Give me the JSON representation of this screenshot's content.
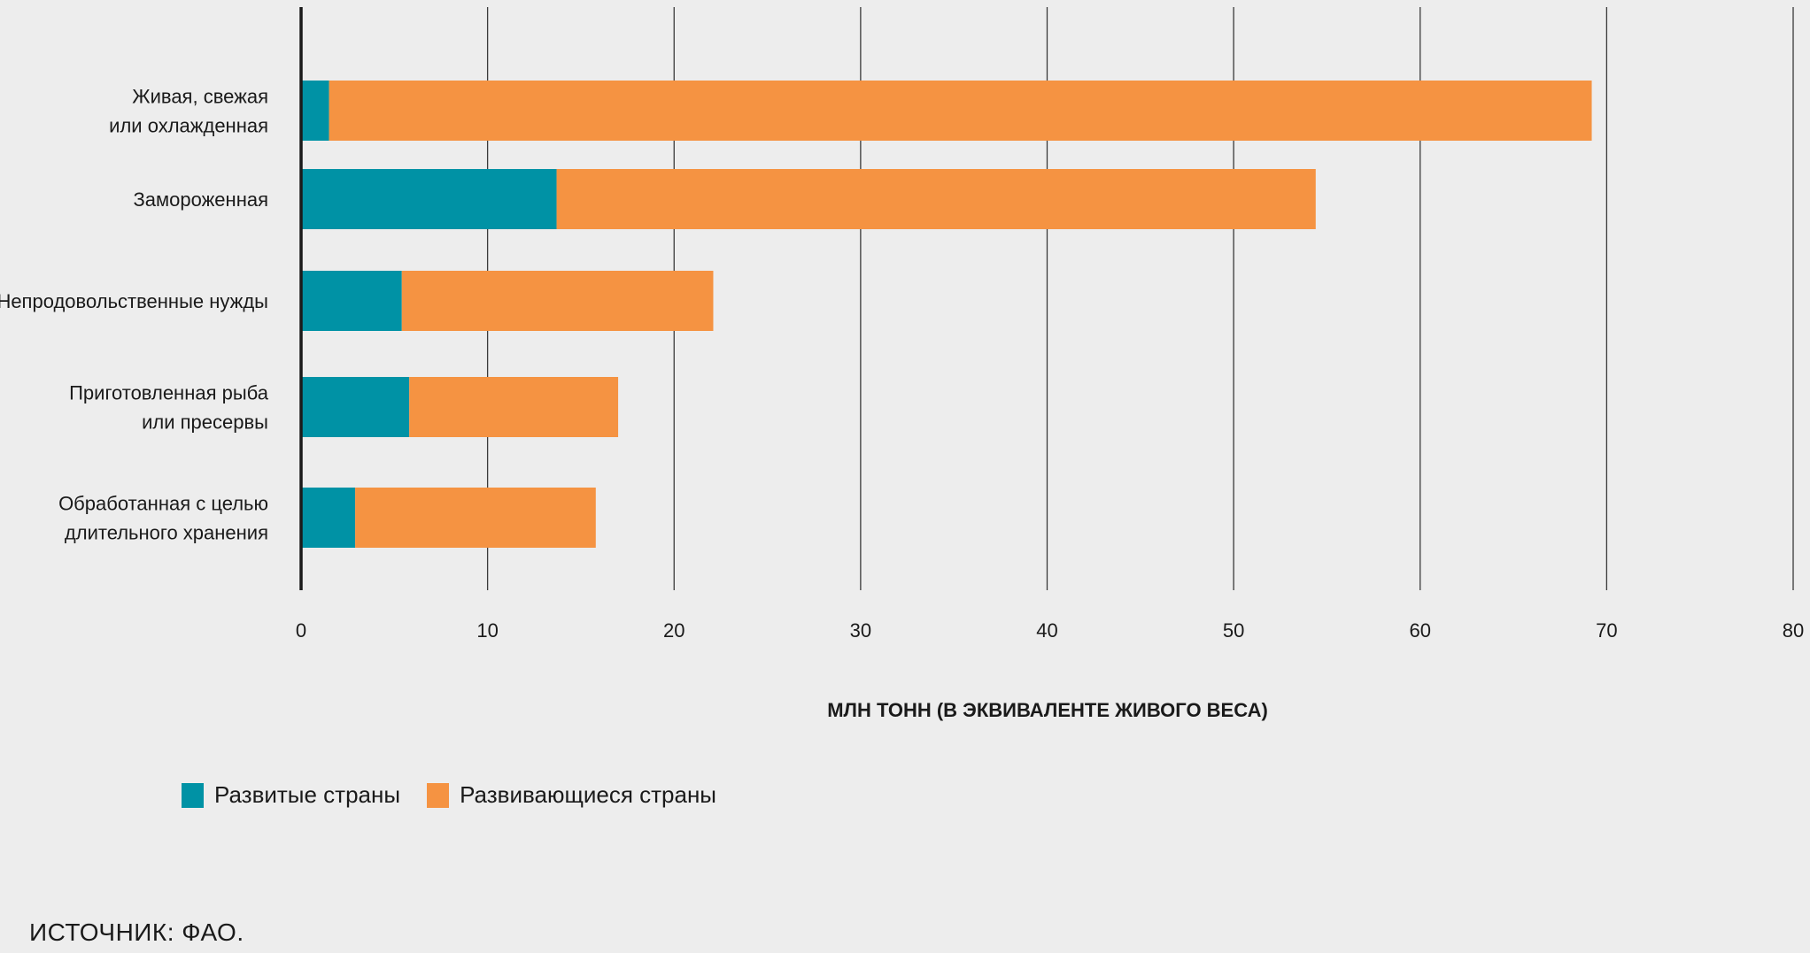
{
  "chart_data": {
    "type": "bar",
    "orientation": "horizontal",
    "stacked": true,
    "categories": [
      [
        "Живая, свежая",
        "или охлажденная"
      ],
      [
        "Замороженная"
      ],
      [
        "Непродовольственные нужды"
      ],
      [
        "Приготовленная рыба",
        "или пресервы"
      ],
      [
        "Обработанная с целью",
        "длительного хранения"
      ]
    ],
    "series": [
      {
        "name": "Развитые страны",
        "color": "#0092a5",
        "values": [
          1.5,
          13.7,
          5.4,
          5.8,
          2.9
        ]
      },
      {
        "name": "Развивающиеся страны",
        "color": "#f59342",
        "values": [
          67.7,
          40.7,
          16.7,
          11.2,
          12.9
        ]
      }
    ],
    "xlabel": "МЛН ТОНН (В ЭКВИВАЛЕНТЕ ЖИВОГО ВЕСА)",
    "xlim": [
      0,
      80
    ],
    "xticks": [
      0,
      10,
      20,
      30,
      40,
      50,
      60,
      70,
      80
    ],
    "grid": true,
    "legend_position": "bottom-left"
  },
  "source": "ИСТОЧНИК: ФАО."
}
